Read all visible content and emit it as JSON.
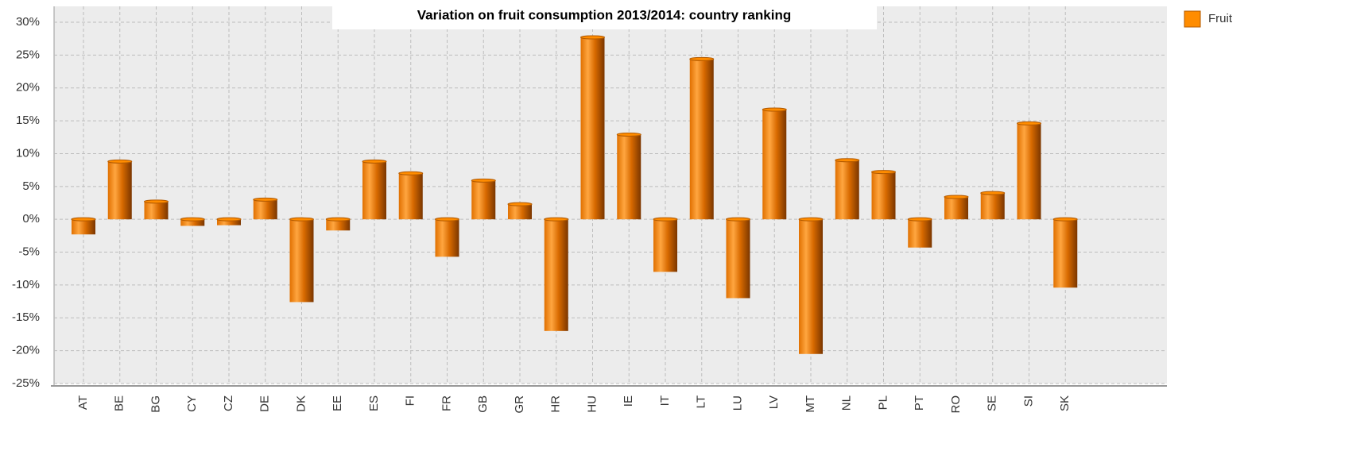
{
  "chart_data": {
    "type": "bar",
    "title": "Variation on fruit consumption 2013/2014: country ranking",
    "categories": [
      "AT",
      "BE",
      "BG",
      "CY",
      "CZ",
      "DE",
      "DK",
      "EE",
      "ES",
      "FI",
      "FR",
      "GB",
      "GR",
      "HR",
      "HU",
      "IE",
      "IT",
      "LT",
      "LU",
      "LV",
      "MT",
      "NL",
      "PL",
      "PT",
      "RO",
      "SE",
      "SI",
      "SK"
    ],
    "series": [
      {
        "name": "Fruit",
        "color": "#ff8c00",
        "values": [
          -2.3,
          8.8,
          2.7,
          -1.0,
          -0.9,
          3.0,
          -12.6,
          -1.7,
          8.8,
          7.0,
          -5.7,
          5.9,
          2.3,
          -17.0,
          27.7,
          12.9,
          -8.0,
          24.4,
          -12.0,
          16.7,
          -20.5,
          9.0,
          7.2,
          -4.3,
          3.4,
          4.0,
          14.6,
          -10.4
        ]
      }
    ],
    "ylim": [
      -25,
      30
    ],
    "yticks": [
      {
        "value": -25,
        "label": "-25%"
      },
      {
        "value": -20,
        "label": "-20%"
      },
      {
        "value": -15,
        "label": "-15%"
      },
      {
        "value": -10,
        "label": "-10%"
      },
      {
        "value": -5,
        "label": "-5%"
      },
      {
        "value": 0,
        "label": "0%"
      },
      {
        "value": 5,
        "label": "5%"
      },
      {
        "value": 10,
        "label": "10%"
      },
      {
        "value": 15,
        "label": "15%"
      },
      {
        "value": 20,
        "label": "20%"
      },
      {
        "value": 25,
        "label": "25%"
      },
      {
        "value": 30,
        "label": "30%"
      }
    ],
    "grid": true,
    "legend": "top-right"
  }
}
